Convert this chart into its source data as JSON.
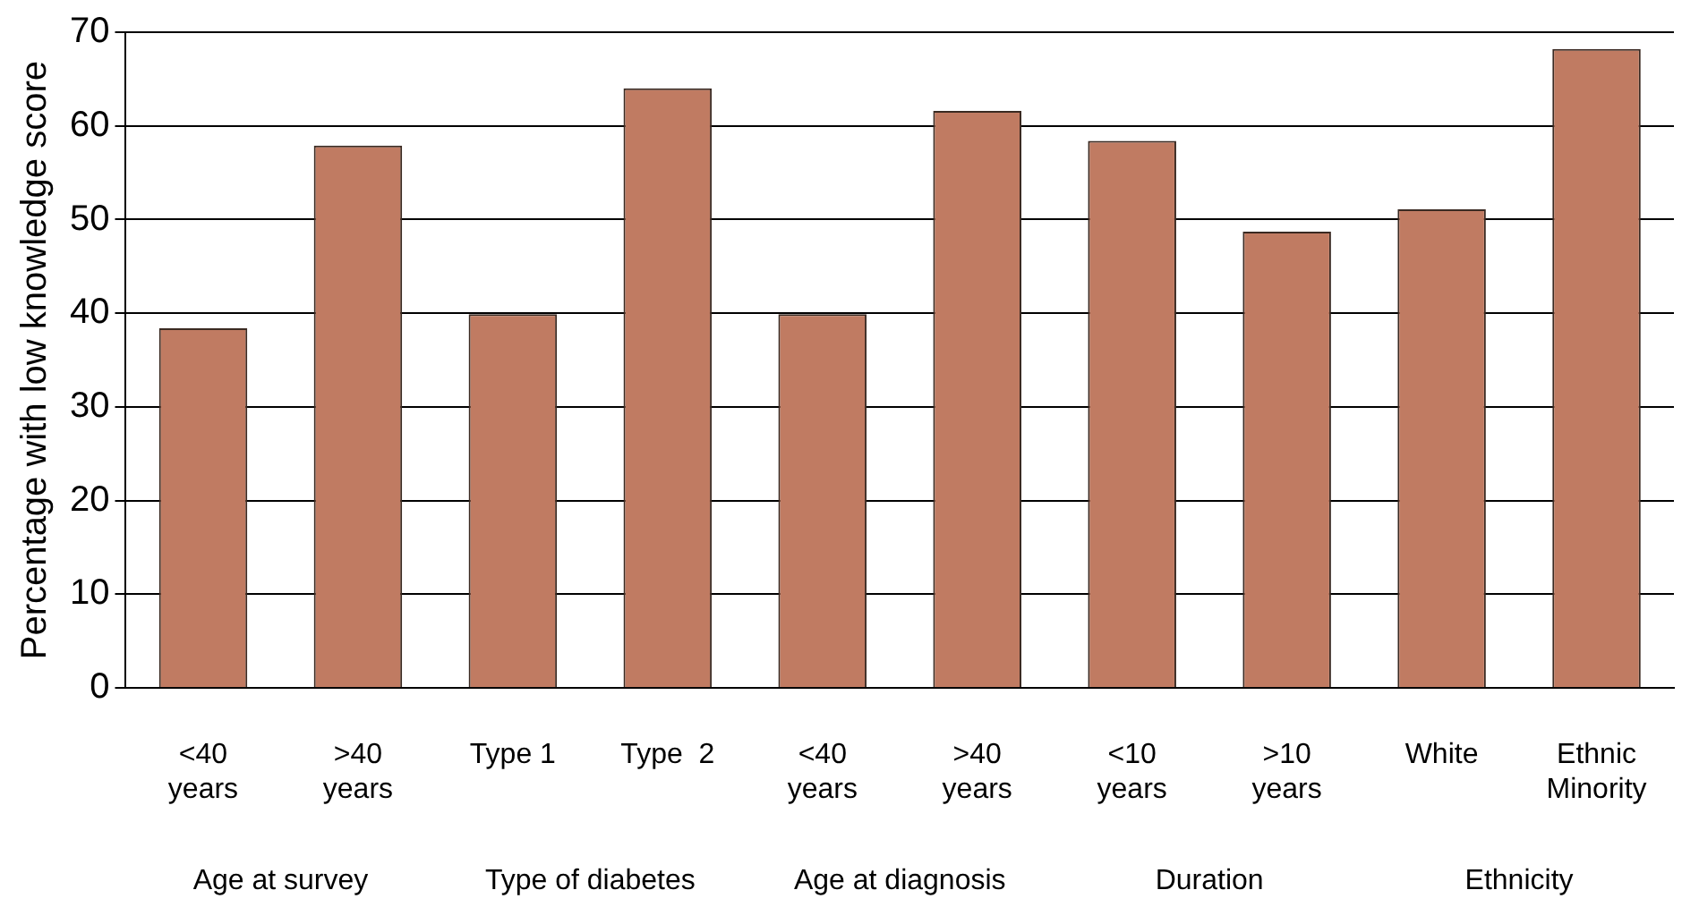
{
  "chart_data": {
    "type": "bar",
    "ylabel": "Percentage with low knowledge score",
    "categories": [
      "<40\nyears",
      ">40\nyears",
      "Type 1",
      "Type  2",
      "<40\nyears",
      ">40\nyears",
      "<10\nyears",
      ">10\nyears",
      "White",
      "Ethnic\nMinority"
    ],
    "values": [
      38.4,
      57.9,
      39.9,
      64.0,
      39.9,
      61.6,
      58.4,
      48.7,
      51.1,
      68.2
    ],
    "color": "#c07b62",
    "ylim": [
      0,
      70
    ],
    "yticks": [
      0,
      10,
      20,
      30,
      40,
      50,
      60,
      70
    ],
    "grid": "y",
    "legend": false,
    "annotations": [
      "Age at survey",
      "Type of diabetes",
      "Age at diagnosis",
      "Duration",
      "Ethnicity"
    ]
  }
}
